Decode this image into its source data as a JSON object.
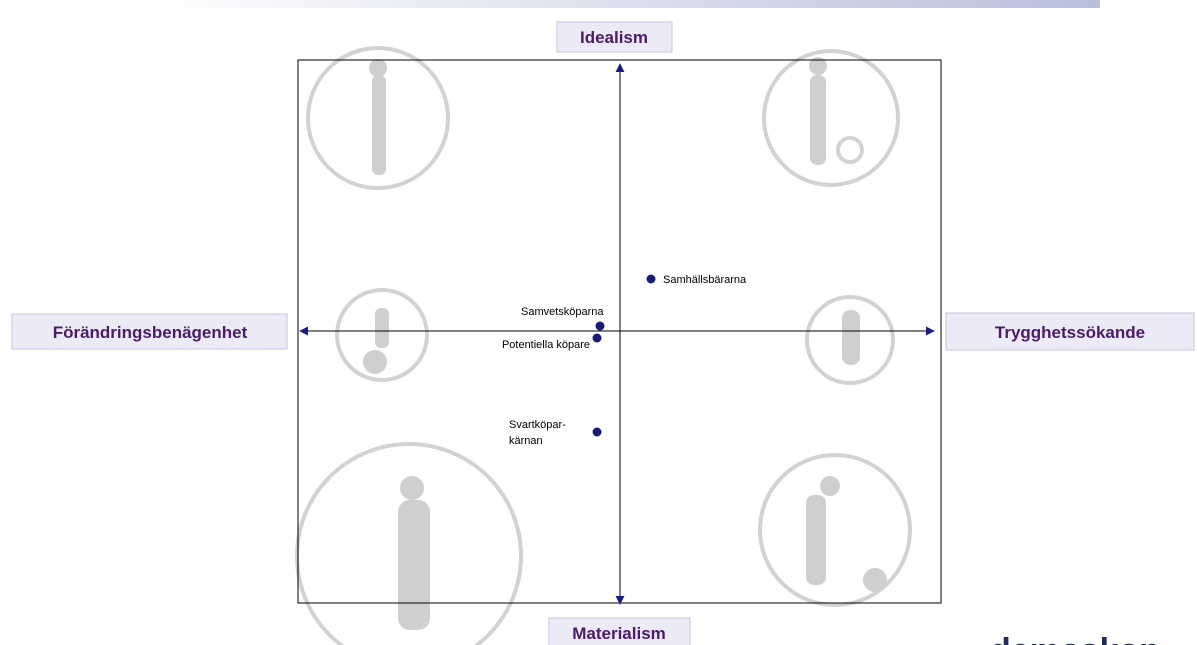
{
  "axes": {
    "top": "Idealism",
    "bottom": "Materialism",
    "left": "Förändringsbenägenhet",
    "right": "Trygghetssökande"
  },
  "nodes": [
    {
      "lines": [
        "Samhällsbärarna"
      ]
    },
    {
      "lines": [
        "Samvetsköparna"
      ]
    },
    {
      "lines": [
        "Potentiella köpare"
      ]
    },
    {
      "lines": [
        "Svartköpar-",
        "kärnan"
      ]
    }
  ],
  "logo": "demoskop"
}
